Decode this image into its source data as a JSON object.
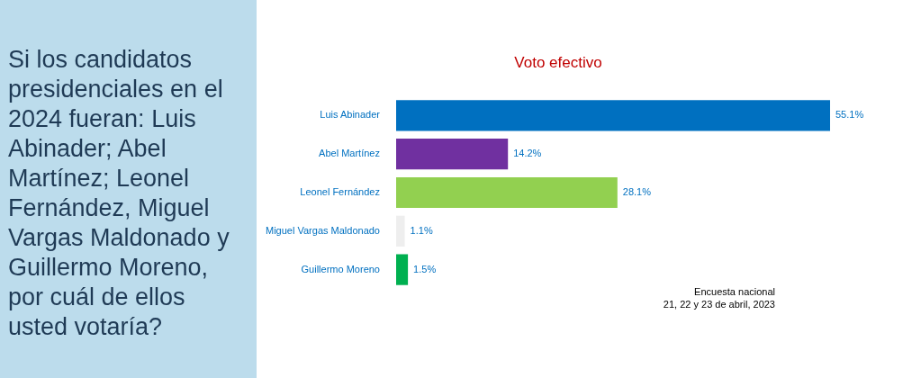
{
  "chart_data": {
    "type": "bar",
    "orientation": "horizontal",
    "title": "Si los candidatos presidenciales en el 2024 fueran: Luis Abinader; Abel Martínez; Leonel Fernández, Miguel Vargas Maldonado y Guillermo Moreno, por cuál de ellos usted votaría?",
    "subtitle": "Voto efectivo",
    "categories": [
      "Luis Abinader",
      "Abel Martínez",
      "Leonel Fernández",
      "Miguel Vargas Maldonado",
      "Guillermo Moreno"
    ],
    "values": [
      55.1,
      14.2,
      28.1,
      1.1,
      1.5
    ],
    "colors": [
      "#0070c0",
      "#7030a0",
      "#92d050",
      "#eeeeee",
      "#00b050"
    ],
    "value_labels": [
      "55.1%",
      "14.2%",
      "28.1%",
      "1.1%",
      "1.5%"
    ],
    "annotations": [
      "Encuesta nacional",
      "21, 22 y 23 de abril, 2023"
    ]
  }
}
